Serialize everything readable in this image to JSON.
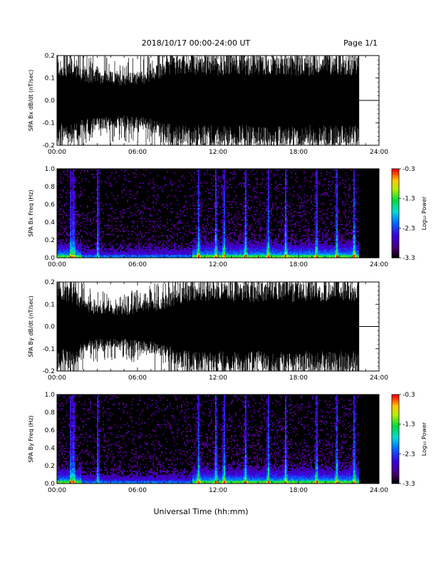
{
  "header": {
    "title": "2018/10/17  00:00-24:00 UT",
    "page": "Page 1/1"
  },
  "xaxis_title": "Universal Time (hh:mm)",
  "colors": {
    "background": "#ffffff",
    "trace": "#000000",
    "no_data": "#000000"
  },
  "chart_data": [
    {
      "type": "line",
      "ylabel": "SPA Bx dB/dt (nT/sec)",
      "xlim": [
        0,
        24
      ],
      "ylim": [
        -0.2,
        0.2
      ],
      "x_ticks": [
        "00:00",
        "06:00",
        "12:00",
        "18:00",
        "24:00"
      ],
      "y_ticks": [
        "-0.2",
        "-0.1",
        "0.0",
        "0.1",
        "0.2"
      ],
      "y_tick_values": [
        -0.2,
        -0.1,
        0.0,
        0.1,
        0.2
      ],
      "data_end_hour": 22.5,
      "envelope": {
        "hours": [
          0,
          0.5,
          1,
          1.5,
          2,
          3,
          4,
          5,
          6,
          7,
          8,
          9,
          10,
          11,
          12,
          13,
          14,
          15,
          16,
          17,
          18,
          19,
          20,
          21,
          22,
          22.5
        ],
        "amplitude": [
          0.2,
          0.16,
          0.2,
          0.18,
          0.14,
          0.14,
          0.13,
          0.12,
          0.13,
          0.14,
          0.18,
          0.2,
          0.2,
          0.2,
          0.2,
          0.2,
          0.2,
          0.2,
          0.2,
          0.2,
          0.2,
          0.2,
          0.2,
          0.2,
          0.2,
          0.2
        ]
      }
    },
    {
      "type": "heatmap",
      "ylabel": "SPA Bx Freq (Hz)",
      "xlim": [
        0,
        24
      ],
      "ylim": [
        0,
        1
      ],
      "x_ticks": [
        "00:00",
        "06:00",
        "12:00",
        "18:00",
        "24:00"
      ],
      "y_ticks": [
        "0.0",
        "0.2",
        "0.4",
        "0.6",
        "0.8",
        "1.0"
      ],
      "y_tick_values": [
        0,
        0.2,
        0.4,
        0.6,
        0.8,
        1.0
      ],
      "colorbar_label": "Log₁₀ Power",
      "colorbar_ticks": [
        "-0.3",
        "-1.3",
        "-2.3",
        "-3.3"
      ],
      "colorbar_tick_values": [
        -0.3,
        -1.3,
        -2.3,
        -3.3
      ],
      "colorbar_range": [
        -3.3,
        -0.3
      ],
      "data_end_hour": 22.5,
      "bursts_hours": [
        1.0,
        1.2,
        3.0,
        10.5,
        11.8,
        12.4,
        14.0,
        15.7,
        17.0,
        19.3,
        20.8,
        22.1
      ]
    },
    {
      "type": "line",
      "ylabel": "SPA By dB/dt (nT/sec)",
      "xlim": [
        0,
        24
      ],
      "ylim": [
        -0.2,
        0.2
      ],
      "x_ticks": [
        "00:00",
        "06:00",
        "12:00",
        "18:00",
        "24:00"
      ],
      "y_ticks": [
        "-0.2",
        "-0.1",
        "0.0",
        "0.1",
        "0.2"
      ],
      "y_tick_values": [
        -0.2,
        -0.1,
        0.0,
        0.1,
        0.2
      ],
      "data_end_hour": 22.5,
      "envelope": {
        "hours": [
          0,
          0.5,
          1,
          1.5,
          2,
          3,
          4,
          5,
          6,
          7,
          8,
          9,
          10,
          11,
          12,
          13,
          14,
          15,
          16,
          17,
          18,
          19,
          20,
          21,
          22,
          22.5
        ],
        "amplitude": [
          0.2,
          0.18,
          0.2,
          0.16,
          0.12,
          0.1,
          0.1,
          0.09,
          0.11,
          0.12,
          0.14,
          0.18,
          0.2,
          0.2,
          0.2,
          0.2,
          0.2,
          0.2,
          0.2,
          0.2,
          0.2,
          0.2,
          0.2,
          0.2,
          0.2,
          0.2
        ]
      }
    },
    {
      "type": "heatmap",
      "ylabel": "SPA By Freq (Hz)",
      "xlim": [
        0,
        24
      ],
      "ylim": [
        0,
        1
      ],
      "x_ticks": [
        "00:00",
        "06:00",
        "12:00",
        "18:00",
        "24:00"
      ],
      "y_ticks": [
        "0.0",
        "0.2",
        "0.4",
        "0.6",
        "0.8",
        "1.0"
      ],
      "y_tick_values": [
        0,
        0.2,
        0.4,
        0.6,
        0.8,
        1.0
      ],
      "colorbar_label": "Log₁₀ Power",
      "colorbar_ticks": [
        "-0.3",
        "-1.3",
        "-2.3",
        "-3.3"
      ],
      "colorbar_tick_values": [
        -0.3,
        -1.3,
        -2.3,
        -3.3
      ],
      "colorbar_range": [
        -3.3,
        -0.3
      ],
      "data_end_hour": 22.5,
      "bursts_hours": [
        1.0,
        1.2,
        3.0,
        10.5,
        11.8,
        12.4,
        14.0,
        15.7,
        17.0,
        19.3,
        20.8,
        22.1
      ]
    }
  ]
}
